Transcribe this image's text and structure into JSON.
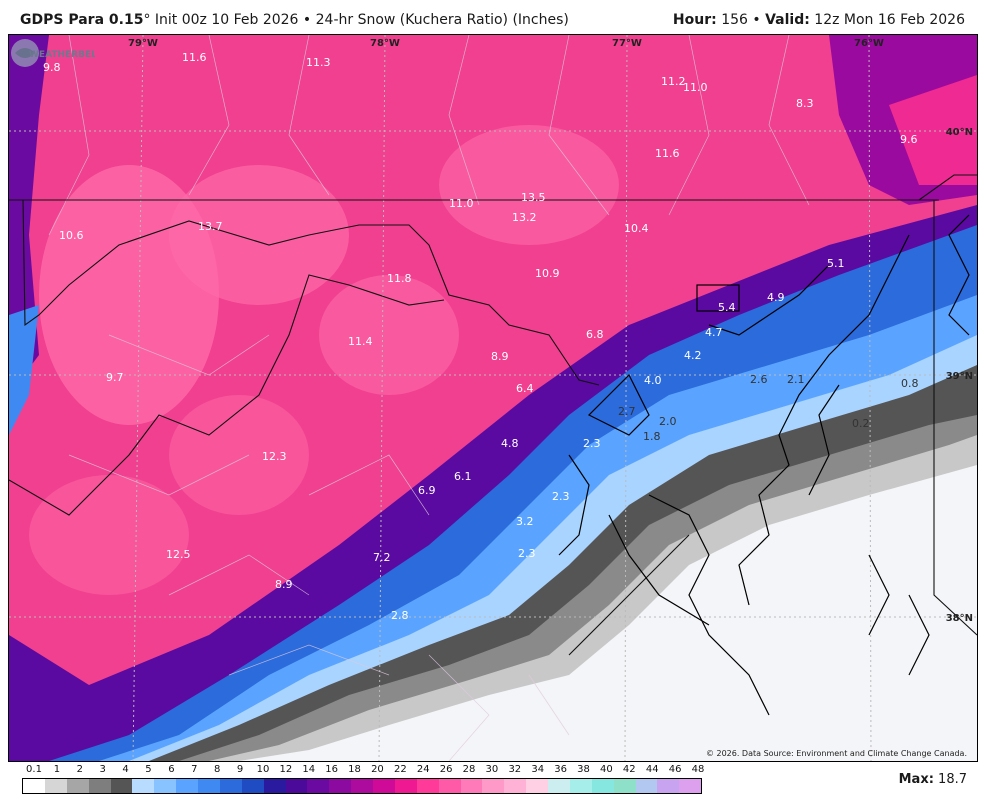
{
  "header": {
    "model": "GDPS Para 0.15",
    "degree": "°",
    "init": "Init 00z 10 Feb 2026",
    "sep": "•",
    "product": "24-hr Snow (Kuchera Ratio) (Inches)",
    "hour_label": "Hour:",
    "hour_value": "156",
    "valid_label": "Valid:",
    "valid_value": "12z Mon 16 Feb 2026"
  },
  "grid_labels": {
    "lon": [
      "79°W",
      "78°W",
      "77°W",
      "76°W"
    ],
    "lat": [
      "40°N",
      "39°N",
      "38°N"
    ]
  },
  "point_values": [
    "9.8",
    "11.6",
    "11.3",
    "11.2",
    "11.0",
    "8.3",
    "9.6",
    "11.6",
    "10.6",
    "13.7",
    "11.0",
    "13.5",
    "13.2",
    "10.4",
    "5.1",
    "11.8",
    "10.9",
    "5.4",
    "4.9",
    "11.4",
    "6.8",
    "4.7",
    "4.2",
    "9.7",
    "8.9",
    "6.4",
    "4.0",
    "2.6",
    "2.1",
    "0.8",
    "2.7",
    "2.0",
    "0.2",
    "1.8",
    "12.3",
    "4.8",
    "2.3",
    "6.1",
    "6.9",
    "2.3",
    "3.2",
    "12.5",
    "7.2",
    "2.3",
    "8.9",
    "2.8"
  ],
  "copyright": "© 2026. Data Source: Environment and Climate Change Canada.",
  "logo_text": "WEATHERBELL",
  "legend": {
    "ticks": [
      "0.1",
      "1",
      "2",
      "3",
      "4",
      "5",
      "6",
      "7",
      "8",
      "9",
      "10",
      "12",
      "14",
      "16",
      "18",
      "20",
      "22",
      "24",
      "26",
      "28",
      "30",
      "32",
      "34",
      "36",
      "38",
      "40",
      "42",
      "44",
      "46",
      "48"
    ],
    "colors": [
      "#ffffff",
      "#d6d6d6",
      "#a6a6a6",
      "#7e7e7e",
      "#555555",
      "#b7dcff",
      "#88c2ff",
      "#5aa4ff",
      "#3f89f2",
      "#2b6bdc",
      "#1f4cc2",
      "#2a1aa0",
      "#4b0a9a",
      "#6b0aa0",
      "#8c0aa0",
      "#ad0a9e",
      "#cf0a98",
      "#ef1a92",
      "#ff3a98",
      "#ff5aa8",
      "#ff7ab8",
      "#ff9ac8",
      "#ffb2d6",
      "#ffd0e4",
      "#cdeef0",
      "#a6eeea",
      "#86e6e0",
      "#8fe0c8",
      "#b2c8f0",
      "#c8a4f0",
      "#dca0ee"
    ]
  },
  "max": {
    "label": "Max:",
    "value": "18.7"
  }
}
